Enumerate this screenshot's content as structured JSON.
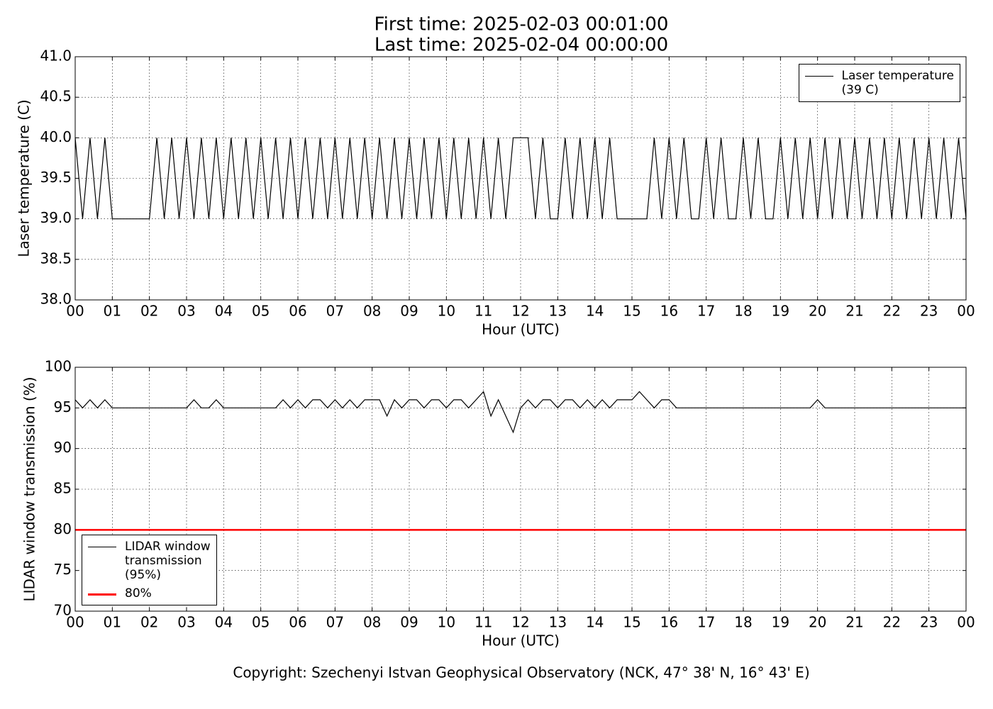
{
  "chart_data": [
    {
      "type": "line",
      "title": "First time: 2025-02-03 00:01:00",
      "subtitle": "Last time: 2025-02-04 00:00:00",
      "x_label": "Hour (UTC)",
      "y_label": "Laser temperature (C)",
      "xlim": [
        0,
        24
      ],
      "ylim": [
        38,
        41
      ],
      "xticks": [
        {
          "value": 0,
          "label": "00"
        },
        {
          "value": 1,
          "label": "01"
        },
        {
          "value": 2,
          "label": "02"
        },
        {
          "value": 3,
          "label": "03"
        },
        {
          "value": 4,
          "label": "04"
        },
        {
          "value": 5,
          "label": "05"
        },
        {
          "value": 6,
          "label": "06"
        },
        {
          "value": 7,
          "label": "07"
        },
        {
          "value": 8,
          "label": "08"
        },
        {
          "value": 9,
          "label": "09"
        },
        {
          "value": 10,
          "label": "10"
        },
        {
          "value": 11,
          "label": "11"
        },
        {
          "value": 12,
          "label": "12"
        },
        {
          "value": 13,
          "label": "13"
        },
        {
          "value": 14,
          "label": "14"
        },
        {
          "value": 15,
          "label": "15"
        },
        {
          "value": 16,
          "label": "16"
        },
        {
          "value": 17,
          "label": "17"
        },
        {
          "value": 18,
          "label": "18"
        },
        {
          "value": 19,
          "label": "19"
        },
        {
          "value": 20,
          "label": "20"
        },
        {
          "value": 21,
          "label": "21"
        },
        {
          "value": 22,
          "label": "22"
        },
        {
          "value": 23,
          "label": "23"
        },
        {
          "value": 24,
          "label": "00"
        }
      ],
      "yticks": [
        {
          "value": 38,
          "label": "38.0"
        },
        {
          "value": 38.5,
          "label": "38.5"
        },
        {
          "value": 39,
          "label": "39.0"
        },
        {
          "value": 39.5,
          "label": "39.5"
        },
        {
          "value": 40,
          "label": "40.0"
        },
        {
          "value": 40.5,
          "label": "40.5"
        },
        {
          "value": 41,
          "label": "41.0"
        }
      ],
      "grid": true,
      "legend": "upper right",
      "x": [
        0,
        0.2,
        0.4,
        0.6,
        0.8,
        1,
        1.2,
        1.4,
        1.6,
        1.8,
        2,
        2.2,
        2.4,
        2.6,
        2.8,
        3,
        3.2,
        3.4,
        3.6,
        3.8,
        4,
        4.2,
        4.4,
        4.6,
        4.8,
        5,
        5.2,
        5.4,
        5.6,
        5.8,
        6,
        6.2,
        6.4,
        6.6,
        6.8,
        7,
        7.2,
        7.4,
        7.6,
        7.8,
        8,
        8.2,
        8.4,
        8.6,
        8.8,
        9,
        9.2,
        9.4,
        9.6,
        9.8,
        10,
        10.2,
        10.4,
        10.6,
        10.8,
        11,
        11.2,
        11.4,
        11.6,
        11.8,
        12,
        12.2,
        12.4,
        12.6,
        12.8,
        13,
        13.2,
        13.4,
        13.6,
        13.8,
        14,
        14.2,
        14.4,
        14.6,
        14.8,
        15,
        15.2,
        15.4,
        15.6,
        15.8,
        16,
        16.2,
        16.4,
        16.6,
        16.8,
        17,
        17.2,
        17.4,
        17.6,
        17.8,
        18,
        18.2,
        18.4,
        18.6,
        18.8,
        19,
        19.2,
        19.4,
        19.6,
        19.8,
        20,
        20.2,
        20.4,
        20.6,
        20.8,
        21,
        21.2,
        21.4,
        21.6,
        21.8,
        22,
        22.2,
        22.4,
        22.6,
        22.8,
        23,
        23.2,
        23.4,
        23.6,
        23.8,
        24
      ],
      "series": [
        {
          "name": "Laser temperature\n(39 C)",
          "color": "#000000",
          "values": [
            40,
            39,
            40,
            39,
            40,
            39,
            39,
            39,
            39,
            39,
            39,
            40,
            39,
            40,
            39,
            40,
            39,
            40,
            39,
            40,
            39,
            40,
            39,
            40,
            39,
            40,
            39,
            40,
            39,
            40,
            39,
            40,
            39,
            40,
            39,
            40,
            39,
            40,
            39,
            40,
            39,
            40,
            39,
            40,
            39,
            40,
            39,
            40,
            39,
            40,
            39,
            40,
            39,
            40,
            39,
            40,
            39,
            40,
            39,
            40,
            40,
            40,
            39,
            40,
            39,
            39,
            40,
            39,
            40,
            39,
            40,
            39,
            40,
            39,
            39,
            39,
            39,
            39,
            40,
            39,
            40,
            39,
            40,
            39,
            39,
            40,
            39,
            40,
            39,
            39,
            40,
            39,
            40,
            39,
            39,
            40,
            39,
            40,
            39,
            40,
            39,
            40,
            39,
            40,
            39,
            40,
            39,
            40,
            39,
            40,
            39,
            40,
            39,
            40,
            39,
            40,
            39,
            40,
            39,
            40,
            39
          ]
        }
      ]
    },
    {
      "type": "line",
      "x_label": "Hour (UTC)",
      "y_label": "LIDAR window transmission (%)",
      "xlim": [
        0,
        24
      ],
      "ylim": [
        70,
        100
      ],
      "xticks": [
        {
          "value": 0,
          "label": "00"
        },
        {
          "value": 1,
          "label": "01"
        },
        {
          "value": 2,
          "label": "02"
        },
        {
          "value": 3,
          "label": "03"
        },
        {
          "value": 4,
          "label": "04"
        },
        {
          "value": 5,
          "label": "05"
        },
        {
          "value": 6,
          "label": "06"
        },
        {
          "value": 7,
          "label": "07"
        },
        {
          "value": 8,
          "label": "08"
        },
        {
          "value": 9,
          "label": "09"
        },
        {
          "value": 10,
          "label": "10"
        },
        {
          "value": 11,
          "label": "11"
        },
        {
          "value": 12,
          "label": "12"
        },
        {
          "value": 13,
          "label": "13"
        },
        {
          "value": 14,
          "label": "14"
        },
        {
          "value": 15,
          "label": "15"
        },
        {
          "value": 16,
          "label": "16"
        },
        {
          "value": 17,
          "label": "17"
        },
        {
          "value": 18,
          "label": "18"
        },
        {
          "value": 19,
          "label": "19"
        },
        {
          "value": 20,
          "label": "20"
        },
        {
          "value": 21,
          "label": "21"
        },
        {
          "value": 22,
          "label": "22"
        },
        {
          "value": 23,
          "label": "23"
        },
        {
          "value": 24,
          "label": "00"
        }
      ],
      "yticks": [
        70,
        75,
        80,
        85,
        90,
        95,
        100
      ],
      "grid": true,
      "legend": "lower left",
      "x": [
        0,
        0.2,
        0.4,
        0.6,
        0.8,
        1,
        1.2,
        1.4,
        1.6,
        1.8,
        2,
        2.2,
        2.4,
        2.6,
        2.8,
        3,
        3.2,
        3.4,
        3.6,
        3.8,
        4,
        4.2,
        4.4,
        4.6,
        4.8,
        5,
        5.2,
        5.4,
        5.6,
        5.8,
        6,
        6.2,
        6.4,
        6.6,
        6.8,
        7,
        7.2,
        7.4,
        7.6,
        7.8,
        8,
        8.2,
        8.4,
        8.6,
        8.8,
        9,
        9.2,
        9.4,
        9.6,
        9.8,
        10,
        10.2,
        10.4,
        10.6,
        10.8,
        11,
        11.2,
        11.4,
        11.6,
        11.8,
        12,
        12.2,
        12.4,
        12.6,
        12.8,
        13,
        13.2,
        13.4,
        13.6,
        13.8,
        14,
        14.2,
        14.4,
        14.6,
        14.8,
        15,
        15.2,
        15.4,
        15.6,
        15.8,
        16,
        16.2,
        16.4,
        16.6,
        16.8,
        17,
        17.2,
        17.4,
        17.6,
        17.8,
        18,
        18.2,
        18.4,
        18.6,
        18.8,
        19,
        19.2,
        19.4,
        19.6,
        19.8,
        20,
        20.2,
        20.4,
        20.6,
        20.8,
        21,
        21.2,
        21.4,
        21.6,
        21.8,
        22,
        22.2,
        22.4,
        22.6,
        22.8,
        23,
        23.2,
        23.4,
        23.6,
        23.8,
        24
      ],
      "series": [
        {
          "name": "LIDAR window\ntransmission\n(95%)",
          "color": "#000000",
          "values": [
            96,
            95,
            96,
            95,
            96,
            95,
            95,
            95,
            95,
            95,
            95,
            95,
            95,
            95,
            95,
            95,
            96,
            95,
            95,
            96,
            95,
            95,
            95,
            95,
            95,
            95,
            95,
            95,
            96,
            95,
            96,
            95,
            96,
            96,
            95,
            96,
            95,
            96,
            95,
            96,
            96,
            96,
            94,
            96,
            95,
            96,
            96,
            95,
            96,
            96,
            95,
            96,
            96,
            95,
            96,
            97,
            94,
            96,
            94,
            92,
            95,
            96,
            95,
            96,
            96,
            95,
            96,
            96,
            95,
            96,
            95,
            96,
            95,
            96,
            96,
            96,
            97,
            96,
            95,
            96,
            96,
            95,
            95,
            95,
            95,
            95,
            95,
            95,
            95,
            95,
            95,
            95,
            95,
            95,
            95,
            95,
            95,
            95,
            95,
            95,
            96,
            95,
            95,
            95,
            95,
            95,
            95,
            95,
            95,
            95,
            95,
            95,
            95,
            95,
            95,
            95,
            95,
            95,
            95,
            95,
            95
          ]
        }
      ],
      "hlines": [
        {
          "name": "80%",
          "value": 80,
          "color": "#ff0000"
        }
      ]
    }
  ],
  "footer": "Copyright: Szechenyi Istvan Geophysical Observatory (NCK, 47° 38' N, 16° 43' E)"
}
